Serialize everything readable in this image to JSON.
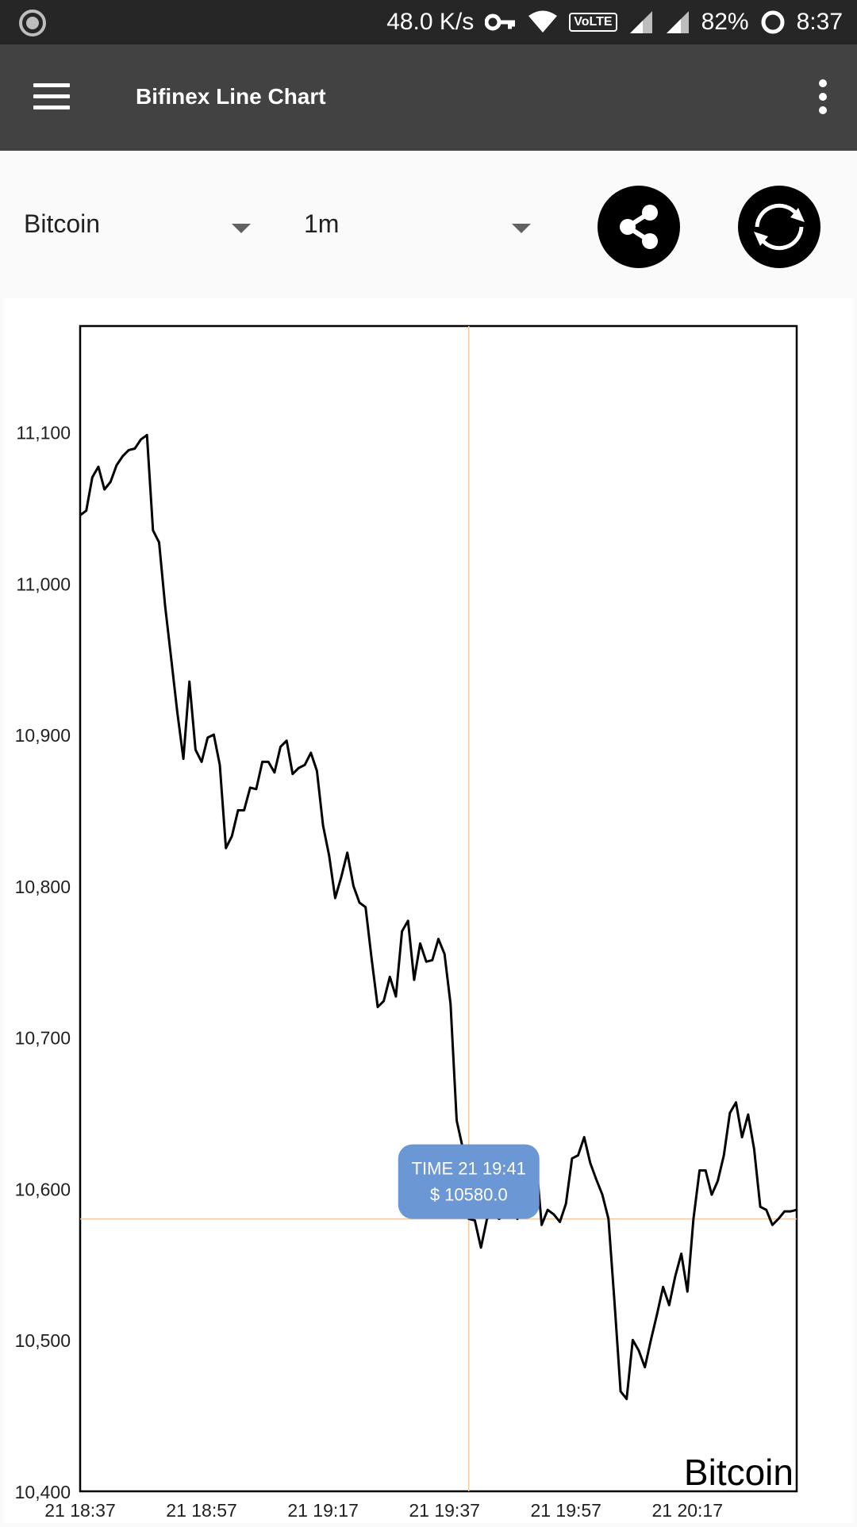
{
  "status_bar": {
    "net_speed": "48.0 K/s",
    "volte": "VoLTE",
    "battery": "82%",
    "time": "8:37"
  },
  "app_bar": {
    "title": "Bifinex Line Chart"
  },
  "controls": {
    "currency_select": "Bitcoin",
    "interval_select": "1m"
  },
  "colors": {
    "crosshair": "#f5c9a0",
    "tooltip": "#6b98d4",
    "line": "#000000"
  },
  "tooltip": {
    "time_line": "TIME 21 19:41",
    "price_line": "$ 10580.0"
  },
  "chart_data": {
    "type": "line",
    "title": "",
    "series_label": "Bitcoin",
    "xlabel": "",
    "ylabel": "",
    "ylim": [
      10400,
      11170
    ],
    "xlim": [
      0,
      118
    ],
    "y_ticks": [
      "11,100",
      "11,000",
      "10,900",
      "10,800",
      "10,700",
      "10,600",
      "10,500",
      "10,400"
    ],
    "y_tick_values": [
      11100,
      11000,
      10900,
      10800,
      10700,
      10600,
      10500,
      10400
    ],
    "x_ticks": [
      "21 18:37",
      "21 18:57",
      "21 19:17",
      "21 19:37",
      "21 19:57",
      "21 20:17"
    ],
    "x_tick_minutes": [
      0,
      20,
      40,
      60,
      80,
      100
    ],
    "crosshair": {
      "minute": 64,
      "value": 10580
    },
    "series": [
      {
        "minutes": [
          0,
          1,
          2,
          3,
          4,
          5,
          6,
          7,
          8,
          9,
          10,
          11,
          12,
          13,
          14,
          15,
          16,
          17,
          18,
          19,
          20,
          21,
          22,
          23,
          24,
          25,
          26,
          27,
          28,
          29,
          30,
          31,
          32,
          33,
          34,
          35,
          36,
          37,
          38,
          39,
          40,
          41,
          42,
          43,
          44,
          45,
          46,
          47,
          48,
          49,
          50,
          51,
          52,
          53,
          54,
          55,
          56,
          57,
          58,
          59,
          60,
          61,
          62,
          63,
          64,
          65,
          66,
          67,
          68,
          69,
          70,
          71,
          72,
          73,
          74,
          75,
          76,
          77,
          78,
          79,
          80,
          81,
          82,
          83,
          84,
          85,
          86,
          87,
          88,
          89,
          90,
          91,
          92,
          93,
          94,
          95,
          96,
          97,
          98,
          99,
          100,
          101,
          102,
          103,
          104,
          105,
          106,
          107,
          108,
          109,
          110,
          111,
          112,
          113,
          114,
          115,
          116,
          117,
          118
        ],
        "values": [
          11045,
          11048,
          11070,
          11077,
          11062,
          11067,
          11078,
          11084,
          11088,
          11089,
          11095,
          11098,
          11035,
          11027,
          10985,
          10950,
          10915,
          10884,
          10935,
          10890,
          10882,
          10898,
          10900,
          10880,
          10825,
          10833,
          10850,
          10850,
          10865,
          10864,
          10882,
          10882,
          10875,
          10892,
          10896,
          10874,
          10878,
          10880,
          10888,
          10876,
          10840,
          10820,
          10792,
          10806,
          10822,
          10800,
          10789,
          10786,
          10752,
          10720,
          10724,
          10740,
          10727,
          10770,
          10777,
          10738,
          10762,
          10750,
          10751,
          10765,
          10755,
          10722,
          10645,
          10627,
          10580,
          10579,
          10561,
          10580,
          10583,
          10580,
          10583,
          10585,
          10580,
          10592,
          10620,
          10623,
          10576,
          10586,
          10583,
          10578,
          10590,
          10620,
          10622,
          10634,
          10617,
          10606,
          10596,
          10580,
          10525,
          10466,
          10461,
          10500,
          10493,
          10482,
          10500,
          10517,
          10535,
          10523,
          10542,
          10557,
          10532,
          10580,
          10612,
          10612,
          10596,
          10605,
          10622,
          10650,
          10657,
          10634,
          10649,
          10626,
          10588,
          10586,
          10576,
          10580,
          10585,
          10585,
          10586
        ]
      }
    ]
  }
}
